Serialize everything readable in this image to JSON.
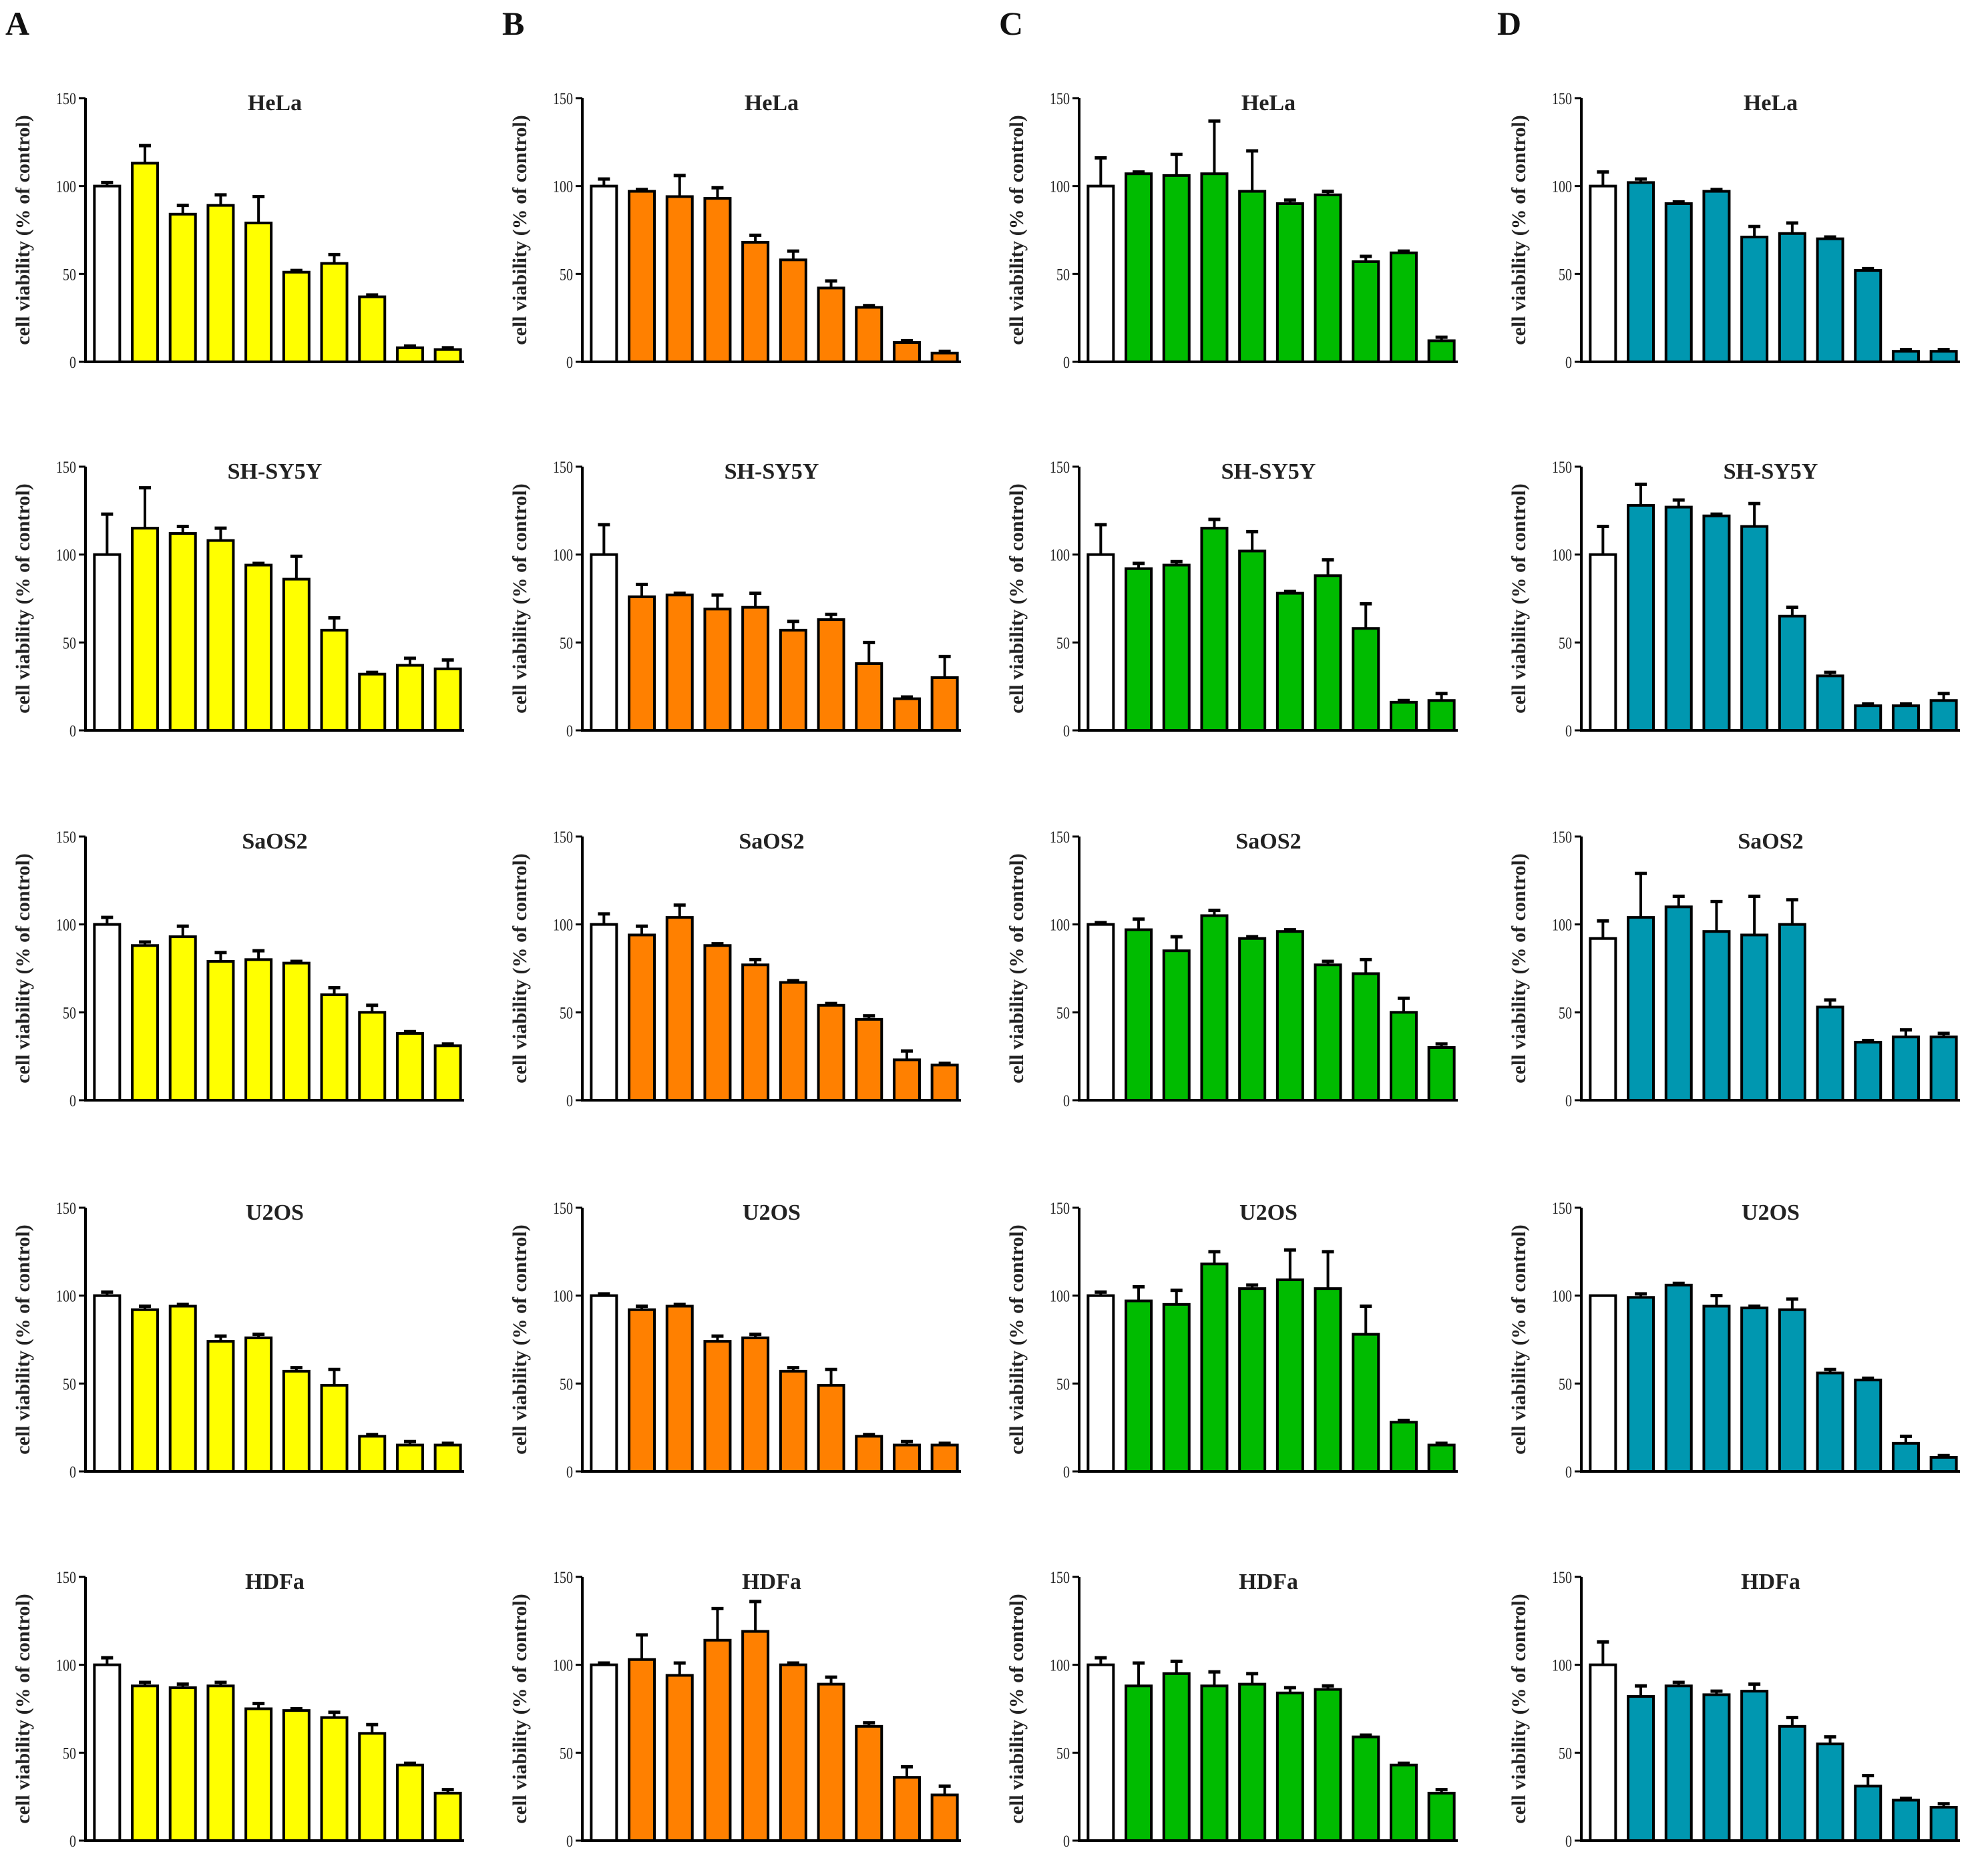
{
  "panels": [
    "A",
    "B",
    "C",
    "D"
  ],
  "colors": {
    "control": "#ffffff",
    "A": "#ffff00",
    "B": "#ff8000",
    "C": "#00bb00",
    "D": "#0097b0",
    "axis": "#000000"
  },
  "chart_data": {
    "type": "bar",
    "ylabel": "cell viability (% of control)",
    "ylim": [
      0,
      150
    ],
    "yticks": [
      "0",
      "50",
      "100",
      "150"
    ],
    "grid": false,
    "note": "Each subplot: 10 bars, first is control (white), others colored; values are mean with upper error bar",
    "columns": [
      {
        "panel": "A",
        "charts": [
          {
            "title": "HeLa",
            "values": [
              100,
              113,
              84,
              89,
              79,
              51,
              56,
              37,
              8,
              7
            ],
            "errors": [
              2,
              10,
              5,
              6,
              15,
              1,
              5,
              1,
              1,
              1
            ]
          },
          {
            "title": "SH-SY5Y",
            "values": [
              100,
              115,
              112,
              108,
              94,
              86,
              57,
              32,
              37,
              35
            ],
            "errors": [
              23,
              23,
              4,
              7,
              1,
              13,
              7,
              1,
              4,
              5
            ]
          },
          {
            "title": "SaOS2",
            "values": [
              100,
              88,
              93,
              79,
              80,
              78,
              60,
              50,
              38,
              31
            ],
            "errors": [
              4,
              2,
              6,
              5,
              5,
              1,
              4,
              4,
              1,
              1
            ]
          },
          {
            "title": "U2OS",
            "values": [
              100,
              92,
              94,
              74,
              76,
              57,
              49,
              20,
              15,
              15
            ],
            "errors": [
              2,
              2,
              1,
              3,
              2,
              2,
              9,
              1,
              2,
              1
            ]
          },
          {
            "title": "HDFa",
            "values": [
              100,
              88,
              87,
              88,
              75,
              74,
              70,
              61,
              43,
              27
            ],
            "errors": [
              4,
              2,
              2,
              2,
              3,
              1,
              3,
              5,
              1,
              2
            ]
          }
        ]
      },
      {
        "panel": "B",
        "charts": [
          {
            "title": "HeLa",
            "values": [
              100,
              97,
              94,
              93,
              68,
              58,
              42,
              31,
              11,
              5
            ],
            "errors": [
              4,
              1,
              12,
              6,
              4,
              5,
              4,
              1,
              1,
              1
            ]
          },
          {
            "title": "SH-SY5Y",
            "values": [
              100,
              76,
              77,
              69,
              70,
              57,
              63,
              38,
              18,
              30
            ],
            "errors": [
              17,
              7,
              1,
              8,
              8,
              5,
              3,
              12,
              1,
              12
            ]
          },
          {
            "title": "SaOS2",
            "values": [
              100,
              94,
              104,
              88,
              77,
              67,
              54,
              46,
              23,
              20
            ],
            "errors": [
              6,
              5,
              7,
              1,
              3,
              1,
              1,
              2,
              5,
              1
            ]
          },
          {
            "title": "U2OS",
            "values": [
              100,
              92,
              94,
              74,
              76,
              57,
              49,
              20,
              15,
              15
            ],
            "errors": [
              1,
              2,
              1,
              3,
              2,
              2,
              9,
              1,
              2,
              1
            ]
          },
          {
            "title": "HDFa",
            "values": [
              100,
              103,
              94,
              114,
              119,
              100,
              89,
              65,
              36,
              26
            ],
            "errors": [
              1,
              14,
              7,
              18,
              17,
              1,
              4,
              2,
              6,
              5
            ]
          }
        ]
      },
      {
        "panel": "C",
        "charts": [
          {
            "title": "HeLa",
            "values": [
              100,
              107,
              106,
              107,
              97,
              90,
              95,
              57,
              62,
              12
            ],
            "errors": [
              16,
              1,
              12,
              30,
              23,
              2,
              2,
              3,
              1,
              2
            ]
          },
          {
            "title": "SH-SY5Y",
            "values": [
              100,
              92,
              94,
              115,
              102,
              78,
              88,
              58,
              16,
              17
            ],
            "errors": [
              17,
              3,
              2,
              5,
              11,
              1,
              9,
              14,
              1,
              4
            ]
          },
          {
            "title": "SaOS2",
            "values": [
              100,
              97,
              85,
              105,
              92,
              96,
              77,
              72,
              50,
              30
            ],
            "errors": [
              1,
              6,
              8,
              3,
              1,
              1,
              2,
              8,
              8,
              2
            ]
          },
          {
            "title": "U2OS",
            "values": [
              100,
              97,
              95,
              118,
              104,
              109,
              104,
              78,
              28,
              15
            ],
            "errors": [
              2,
              8,
              8,
              7,
              2,
              17,
              21,
              16,
              1,
              1
            ]
          },
          {
            "title": "HDFa",
            "values": [
              100,
              88,
              95,
              88,
              89,
              84,
              86,
              59,
              43,
              27
            ],
            "errors": [
              4,
              13,
              7,
              8,
              6,
              3,
              2,
              1,
              1,
              2
            ]
          }
        ]
      },
      {
        "panel": "D",
        "charts": [
          {
            "title": "HeLa",
            "values": [
              100,
              102,
              90,
              97,
              71,
              73,
              70,
              52,
              6,
              6
            ],
            "errors": [
              8,
              2,
              1,
              1,
              6,
              6,
              1,
              1,
              1,
              1
            ]
          },
          {
            "title": "SH-SY5Y",
            "values": [
              100,
              128,
              127,
              122,
              116,
              65,
              31,
              14,
              14,
              17
            ],
            "errors": [
              16,
              12,
              4,
              1,
              13,
              5,
              2,
              1,
              1,
              4
            ]
          },
          {
            "title": "SaOS2",
            "values": [
              92,
              104,
              110,
              96,
              94,
              100,
              53,
              33,
              36,
              36
            ],
            "errors": [
              10,
              25,
              6,
              17,
              22,
              14,
              4,
              1,
              4,
              2
            ]
          },
          {
            "title": "U2OS",
            "values": [
              100,
              99,
              106,
              94,
              93,
              92,
              56,
              52,
              16,
              8
            ],
            "errors": [
              0,
              2,
              1,
              6,
              1,
              6,
              2,
              1,
              4,
              1
            ]
          },
          {
            "title": "HDFa",
            "values": [
              100,
              82,
              88,
              83,
              85,
              65,
              55,
              31,
              23,
              19
            ],
            "errors": [
              13,
              6,
              2,
              2,
              4,
              5,
              4,
              6,
              1,
              2
            ]
          }
        ]
      }
    ]
  }
}
